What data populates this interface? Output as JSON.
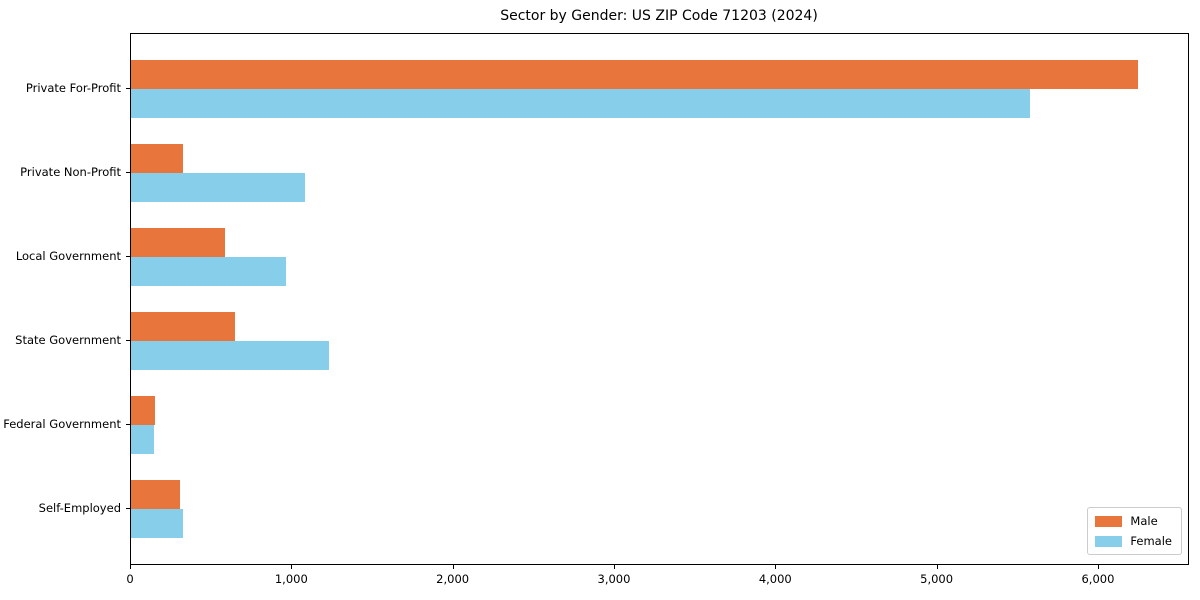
{
  "title": "Sector by Gender: US ZIP Code 71203 (2024)",
  "colors": {
    "male": "#e8763c",
    "female": "#87ceeb",
    "axis": "#000000",
    "legend_border": "#cccccc",
    "background": "#ffffff"
  },
  "legend": {
    "position": "lower right",
    "items": [
      {
        "label": "Male",
        "color": "#e8763c"
      },
      {
        "label": "Female",
        "color": "#87ceeb"
      }
    ]
  },
  "chart_data": {
    "type": "bar",
    "orientation": "horizontal",
    "title": "Sector by Gender: US ZIP Code 71203 (2024)",
    "categories": [
      "Private For-Profit",
      "Private Non-Profit",
      "Local Government",
      "State Government",
      "Federal Government",
      "Self-Employed"
    ],
    "series": [
      {
        "name": "Male",
        "color": "#e8763c",
        "values": [
          6240,
          320,
          580,
          645,
          150,
          305
        ]
      },
      {
        "name": "Female",
        "color": "#87ceeb",
        "values": [
          5575,
          1080,
          960,
          1230,
          145,
          325
        ]
      }
    ],
    "xlabel": "",
    "ylabel": "",
    "xlim": [
      0,
      6552
    ],
    "x_ticks": [
      0,
      1000,
      2000,
      3000,
      4000,
      5000,
      6000
    ],
    "x_tick_labels": [
      "0",
      "1,000",
      "2,000",
      "3,000",
      "4,000",
      "5,000",
      "6,000"
    ],
    "grid": false,
    "legend_position": "lower right"
  }
}
